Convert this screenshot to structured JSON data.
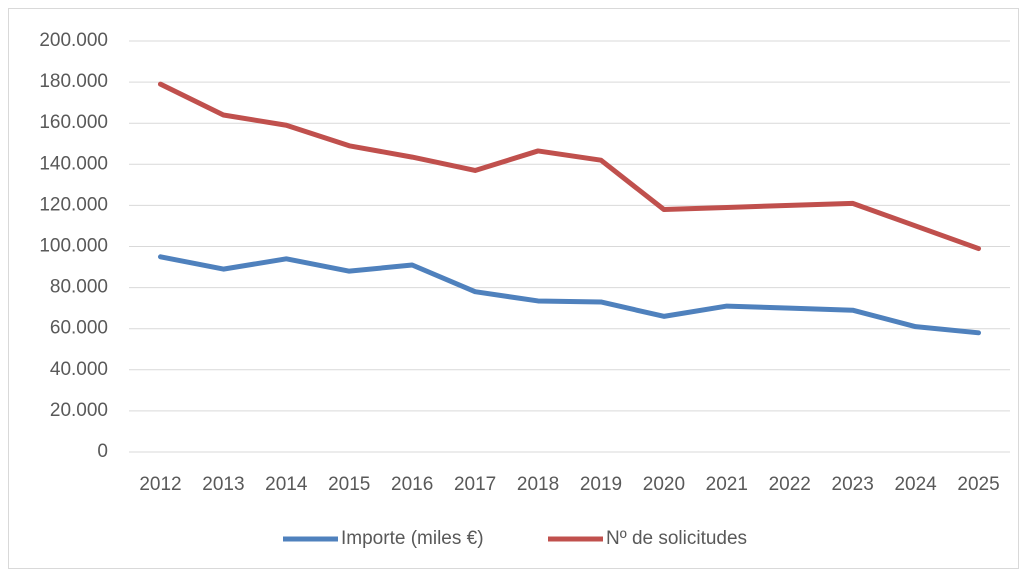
{
  "chart_data": {
    "type": "line",
    "categories": [
      "2012",
      "2013",
      "2014",
      "2015",
      "2016",
      "2017",
      "2018",
      "2019",
      "2020",
      "2021",
      "2022",
      "2023",
      "2024",
      "2025"
    ],
    "series": [
      {
        "name": "Importe (miles €)",
        "color": "#4f81bd",
        "values": [
          95000,
          89000,
          94000,
          88000,
          91000,
          78000,
          73500,
          73000,
          66000,
          71000,
          70000,
          69000,
          61000,
          58000
        ]
      },
      {
        "name": "Nº de solicitudes",
        "color": "#c0504d",
        "values": [
          179000,
          164000,
          159000,
          149000,
          143500,
          137000,
          146500,
          142000,
          118000,
          119000,
          120000,
          121000,
          110000,
          99000
        ]
      }
    ],
    "ylim": [
      0,
      200000
    ],
    "yticks": [
      0,
      {
        "value": 20000,
        "label": "20.000"
      },
      {
        "value": 40000,
        "label": "40.000"
      },
      {
        "value": 60000,
        "label": "60.000"
      },
      {
        "value": 80000,
        "label": "80.000"
      },
      {
        "value": 100000,
        "label": "100.000"
      },
      {
        "value": 120000,
        "label": "120.000"
      },
      {
        "value": 140000,
        "label": "140.000"
      },
      {
        "value": 160000,
        "label": "160.000"
      },
      {
        "value": 180000,
        "label": "180.000"
      },
      {
        "value": 200000,
        "label": "200.000"
      }
    ],
    "grid": true,
    "legend": "bottom"
  }
}
